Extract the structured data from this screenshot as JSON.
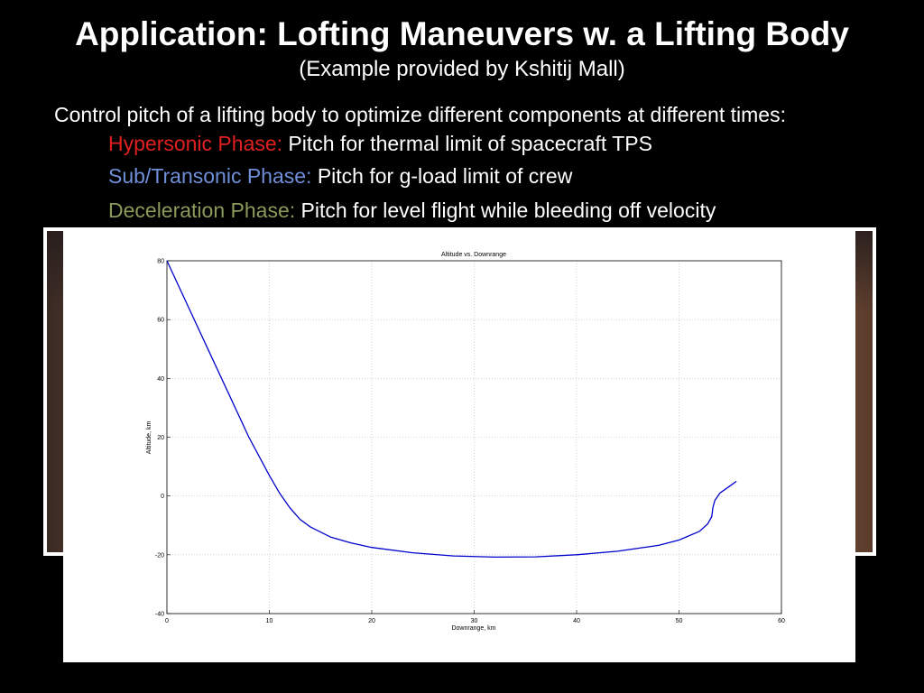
{
  "slide": {
    "title": "Application: Lofting Maneuvers w. a Lifting Body",
    "subtitle": "(Example provided by Kshitij Mall)",
    "intro": "Control pitch of a lifting body to optimize different components at different times:",
    "phases": [
      {
        "label": "Hypersonic Phase:",
        "text": " Pitch for thermal limit of spacecraft TPS",
        "color": "#e02020"
      },
      {
        "label": "Sub/Transonic Phase:",
        "text": " Pitch for g-load limit of crew",
        "color": "#6f8fd8"
      },
      {
        "label": "Deceleration Phase:",
        "text": " Pitch for level flight while bleeding off velocity",
        "color": "#8a9a5a"
      }
    ]
  },
  "chart_data": {
    "type": "line",
    "title": "Altitude vs. Downrange",
    "xlabel": "Downrange, km",
    "ylabel": "Altitude, km",
    "xlim": [
      0,
      60
    ],
    "ylim": [
      -40,
      80
    ],
    "xticks": [
      0,
      10,
      20,
      30,
      40,
      50,
      60
    ],
    "yticks": [
      -40,
      -20,
      0,
      20,
      40,
      60,
      80
    ],
    "grid": true,
    "line_color": "#0000cc",
    "series": [
      {
        "x": [
          0,
          2,
          4,
          6,
          8,
          10,
          11,
          12,
          13,
          14,
          16,
          18,
          20,
          24,
          28,
          32,
          36,
          40,
          44,
          48,
          50,
          52,
          52.8,
          53.2,
          53.3,
          53.5,
          54,
          55,
          55.6
        ],
        "y": [
          80,
          65,
          50,
          35,
          20,
          7,
          1,
          -4,
          -8,
          -10.5,
          -14,
          -16,
          -17.5,
          -19.3,
          -20.4,
          -20.8,
          -20.7,
          -20,
          -18.8,
          -16.8,
          -15,
          -12,
          -9.5,
          -7,
          -4,
          -1.5,
          1,
          3.5,
          5
        ]
      }
    ]
  }
}
